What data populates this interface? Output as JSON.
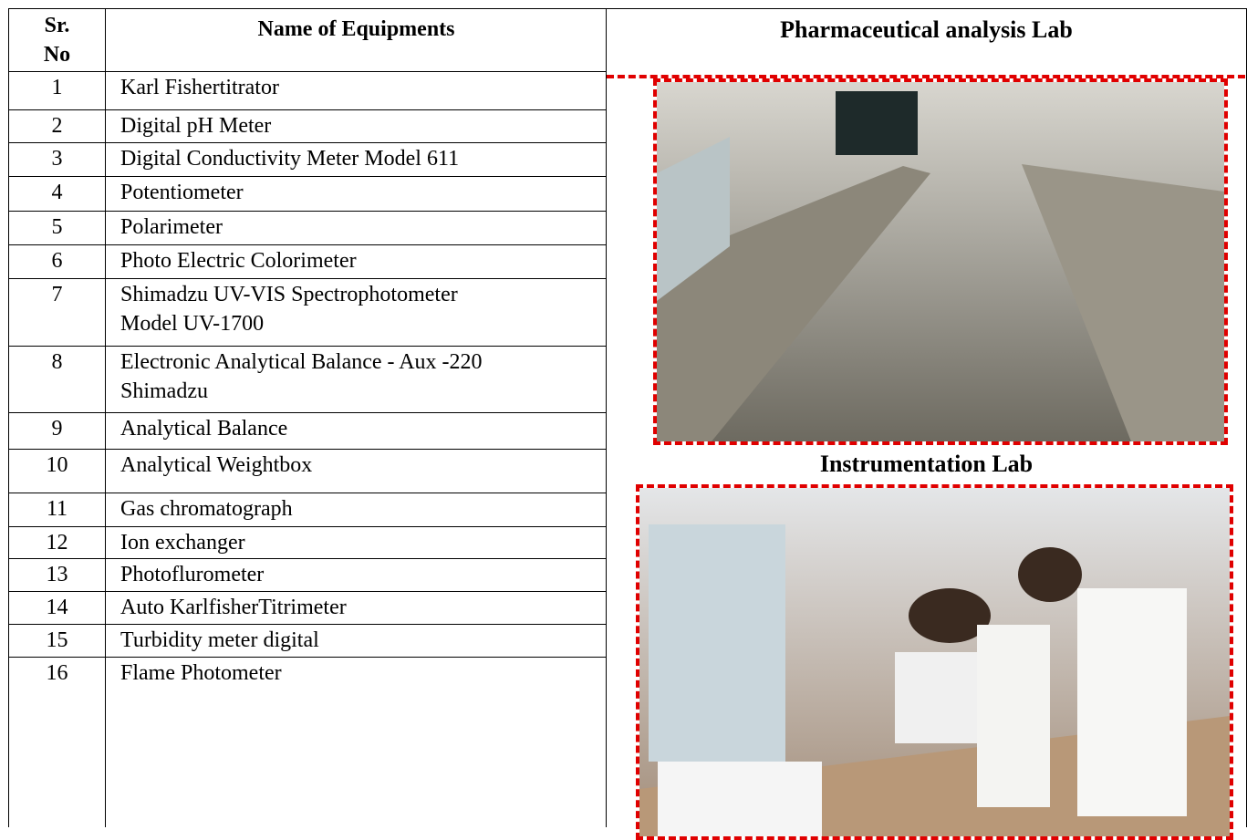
{
  "header": {
    "columns": [
      "Sr.\nNo",
      "Name of Equipments"
    ]
  },
  "table": {
    "rows": [
      [
        "1",
        "Karl Fishertitrator"
      ],
      [
        "2",
        "Digital pH Meter"
      ],
      [
        "3",
        "Digital Conductivity Meter Model 611"
      ],
      [
        "4",
        "Potentiometer"
      ],
      [
        "5",
        "Polarimeter"
      ],
      [
        "6",
        "Photo Electric Colorimeter"
      ],
      [
        "7",
        "Shimadzu UV-VIS Spectrophotometer\nModel UV-1700"
      ],
      [
        "8",
        "Electronic Analytical Balance - Aux -220\nShimadzu"
      ],
      [
        "9",
        "Analytical Balance"
      ],
      [
        "10",
        "Analytical Weightbox"
      ],
      [
        "11",
        "Gas chromatograph"
      ],
      [
        "12",
        "Ion exchanger"
      ],
      [
        "13",
        "Photoflurometer"
      ],
      [
        "14",
        "Auto KarlfisherTitrimeter"
      ],
      [
        "15",
        "Turbidity meter digital"
      ],
      [
        "16",
        "Flame Photometer"
      ]
    ]
  },
  "labs": [
    {
      "title": "Pharmaceutical analysis Lab"
    },
    {
      "title": "Instrumentation Lab"
    }
  ]
}
